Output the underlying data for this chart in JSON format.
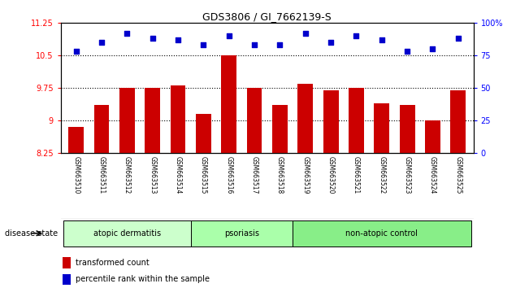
{
  "title": "GDS3806 / GI_7662139-S",
  "samples": [
    "GSM663510",
    "GSM663511",
    "GSM663512",
    "GSM663513",
    "GSM663514",
    "GSM663515",
    "GSM663516",
    "GSM663517",
    "GSM663518",
    "GSM663519",
    "GSM663520",
    "GSM663521",
    "GSM663522",
    "GSM663523",
    "GSM663524",
    "GSM663525"
  ],
  "bar_values": [
    8.85,
    9.35,
    9.75,
    9.75,
    9.8,
    9.15,
    10.5,
    9.75,
    9.35,
    9.85,
    9.7,
    9.75,
    9.4,
    9.35,
    9.0,
    9.7
  ],
  "dot_values": [
    78,
    85,
    92,
    88,
    87,
    83,
    90,
    83,
    83,
    92,
    85,
    90,
    87,
    78,
    80,
    88
  ],
  "ylim_left": [
    8.25,
    11.25
  ],
  "ylim_right": [
    0,
    100
  ],
  "yticks_left": [
    8.25,
    9.0,
    9.75,
    10.5,
    11.25
  ],
  "ytick_labels_left": [
    "8.25",
    "9",
    "9.75",
    "10.5",
    "11.25"
  ],
  "yticks_right": [
    0,
    25,
    50,
    75,
    100
  ],
  "ytick_labels_right": [
    "0",
    "25",
    "50",
    "75",
    "100%"
  ],
  "hlines": [
    9.0,
    9.75,
    10.5
  ],
  "bar_color": "#cc0000",
  "dot_color": "#0000cc",
  "bar_width": 0.6,
  "groups": [
    {
      "label": "atopic dermatitis",
      "start": 0,
      "end": 4,
      "color": "#ccffcc"
    },
    {
      "label": "psoriasis",
      "start": 5,
      "end": 8,
      "color": "#aaffaa"
    },
    {
      "label": "non-atopic control",
      "start": 9,
      "end": 15,
      "color": "#88ee88"
    }
  ],
  "disease_state_label": "disease state",
  "legend_bar_label": "transformed count",
  "legend_dot_label": "percentile rank within the sample",
  "tick_area_color": "#d3d3d3"
}
